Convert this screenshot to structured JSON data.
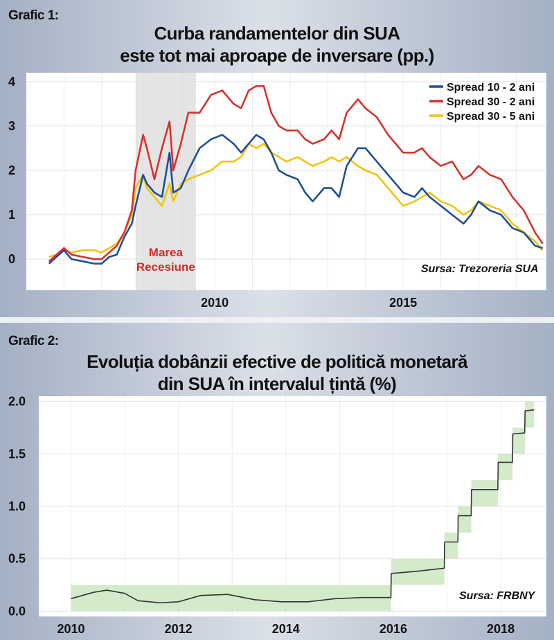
{
  "chart_data": [
    {
      "type": "line",
      "label": "Grafic 1:",
      "title_line1": "Curba randamentelor din SUA",
      "title_line2": "este tot mai aproape de inversare (pp.)",
      "source": "Sursa: Trezoreria SUA",
      "xlabel": "",
      "ylabel": "",
      "x_ticks": [
        "2010",
        "2015"
      ],
      "y_ticks": [
        "0",
        "1",
        "2",
        "3",
        "4"
      ],
      "xlim": [
        2005.0,
        2018.8
      ],
      "ylim": [
        -0.7,
        4.2
      ],
      "grid": true,
      "legend_position": "top-right",
      "annotation": {
        "line1": "Marea",
        "line2": "Recesiune",
        "range": [
          2007.9,
          2009.5
        ]
      },
      "series": [
        {
          "name": "Spread 10 - 2 ani",
          "color": "#1f4e96",
          "points": [
            [
              2005.6,
              -0.1
            ],
            [
              2005.8,
              0.05
            ],
            [
              2006.0,
              0.2
            ],
            [
              2006.2,
              0.0
            ],
            [
              2006.5,
              -0.05
            ],
            [
              2006.8,
              -0.1
            ],
            [
              2007.0,
              -0.1
            ],
            [
              2007.2,
              0.05
            ],
            [
              2007.4,
              0.1
            ],
            [
              2007.6,
              0.5
            ],
            [
              2007.8,
              0.8
            ],
            [
              2007.9,
              1.2
            ],
            [
              2008.1,
              1.9
            ],
            [
              2008.2,
              1.7
            ],
            [
              2008.4,
              1.5
            ],
            [
              2008.6,
              1.4
            ],
            [
              2008.8,
              2.4
            ],
            [
              2008.9,
              1.5
            ],
            [
              2009.1,
              1.6
            ],
            [
              2009.3,
              2.0
            ],
            [
              2009.6,
              2.5
            ],
            [
              2009.9,
              2.7
            ],
            [
              2010.2,
              2.8
            ],
            [
              2010.5,
              2.6
            ],
            [
              2010.7,
              2.4
            ],
            [
              2010.9,
              2.6
            ],
            [
              2011.1,
              2.8
            ],
            [
              2011.3,
              2.7
            ],
            [
              2011.5,
              2.4
            ],
            [
              2011.7,
              2.0
            ],
            [
              2011.9,
              1.9
            ],
            [
              2012.2,
              1.8
            ],
            [
              2012.4,
              1.5
            ],
            [
              2012.6,
              1.3
            ],
            [
              2012.9,
              1.6
            ],
            [
              2013.1,
              1.6
            ],
            [
              2013.3,
              1.4
            ],
            [
              2013.5,
              2.1
            ],
            [
              2013.8,
              2.5
            ],
            [
              2014.0,
              2.5
            ],
            [
              2014.3,
              2.2
            ],
            [
              2014.6,
              1.9
            ],
            [
              2014.8,
              1.7
            ],
            [
              2015.0,
              1.5
            ],
            [
              2015.3,
              1.4
            ],
            [
              2015.5,
              1.6
            ],
            [
              2015.7,
              1.4
            ],
            [
              2016.0,
              1.2
            ],
            [
              2016.3,
              1.0
            ],
            [
              2016.6,
              0.8
            ],
            [
              2016.8,
              1.0
            ],
            [
              2017.0,
              1.3
            ],
            [
              2017.3,
              1.1
            ],
            [
              2017.6,
              1.0
            ],
            [
              2017.9,
              0.7
            ],
            [
              2018.2,
              0.6
            ],
            [
              2018.5,
              0.3
            ],
            [
              2018.7,
              0.25
            ]
          ]
        },
        {
          "name": "Spread 30 - 2 ani",
          "color": "#d7322a",
          "points": [
            [
              2005.6,
              -0.05
            ],
            [
              2005.8,
              0.1
            ],
            [
              2006.0,
              0.25
            ],
            [
              2006.2,
              0.1
            ],
            [
              2006.5,
              0.05
            ],
            [
              2006.8,
              0.0
            ],
            [
              2007.0,
              0.0
            ],
            [
              2007.2,
              0.15
            ],
            [
              2007.4,
              0.3
            ],
            [
              2007.6,
              0.6
            ],
            [
              2007.8,
              1.1
            ],
            [
              2007.9,
              2.0
            ],
            [
              2008.1,
              2.8
            ],
            [
              2008.2,
              2.5
            ],
            [
              2008.4,
              1.8
            ],
            [
              2008.6,
              2.5
            ],
            [
              2008.8,
              3.1
            ],
            [
              2008.9,
              2.0
            ],
            [
              2009.1,
              2.6
            ],
            [
              2009.3,
              3.3
            ],
            [
              2009.6,
              3.3
            ],
            [
              2009.9,
              3.7
            ],
            [
              2010.2,
              3.8
            ],
            [
              2010.5,
              3.5
            ],
            [
              2010.7,
              3.4
            ],
            [
              2010.9,
              3.8
            ],
            [
              2011.1,
              3.9
            ],
            [
              2011.3,
              3.9
            ],
            [
              2011.5,
              3.3
            ],
            [
              2011.7,
              3.0
            ],
            [
              2011.9,
              2.9
            ],
            [
              2012.2,
              2.9
            ],
            [
              2012.4,
              2.7
            ],
            [
              2012.6,
              2.6
            ],
            [
              2012.9,
              2.7
            ],
            [
              2013.1,
              2.9
            ],
            [
              2013.3,
              2.7
            ],
            [
              2013.5,
              3.3
            ],
            [
              2013.8,
              3.6
            ],
            [
              2014.0,
              3.4
            ],
            [
              2014.3,
              3.2
            ],
            [
              2014.6,
              2.8
            ],
            [
              2014.8,
              2.6
            ],
            [
              2015.0,
              2.4
            ],
            [
              2015.3,
              2.4
            ],
            [
              2015.5,
              2.5
            ],
            [
              2015.7,
              2.3
            ],
            [
              2016.0,
              2.1
            ],
            [
              2016.3,
              2.2
            ],
            [
              2016.6,
              1.8
            ],
            [
              2016.8,
              1.9
            ],
            [
              2017.0,
              2.1
            ],
            [
              2017.3,
              1.9
            ],
            [
              2017.6,
              1.8
            ],
            [
              2017.9,
              1.4
            ],
            [
              2018.2,
              1.1
            ],
            [
              2018.5,
              0.6
            ],
            [
              2018.7,
              0.35
            ]
          ]
        },
        {
          "name": "Spread 30 - 5 ani",
          "color": "#f1c40f",
          "points": [
            [
              2005.6,
              0.05
            ],
            [
              2005.8,
              0.1
            ],
            [
              2006.0,
              0.2
            ],
            [
              2006.2,
              0.15
            ],
            [
              2006.5,
              0.2
            ],
            [
              2006.8,
              0.2
            ],
            [
              2007.0,
              0.15
            ],
            [
              2007.2,
              0.25
            ],
            [
              2007.4,
              0.35
            ],
            [
              2007.6,
              0.6
            ],
            [
              2007.8,
              1.0
            ],
            [
              2007.9,
              1.6
            ],
            [
              2008.1,
              1.9
            ],
            [
              2008.2,
              1.6
            ],
            [
              2008.4,
              1.4
            ],
            [
              2008.6,
              1.2
            ],
            [
              2008.8,
              1.7
            ],
            [
              2008.9,
              1.3
            ],
            [
              2009.1,
              1.7
            ],
            [
              2009.3,
              1.8
            ],
            [
              2009.6,
              1.9
            ],
            [
              2009.9,
              2.0
            ],
            [
              2010.2,
              2.2
            ],
            [
              2010.5,
              2.2
            ],
            [
              2010.7,
              2.3
            ],
            [
              2010.9,
              2.6
            ],
            [
              2011.1,
              2.5
            ],
            [
              2011.3,
              2.6
            ],
            [
              2011.5,
              2.4
            ],
            [
              2011.7,
              2.3
            ],
            [
              2011.9,
              2.2
            ],
            [
              2012.2,
              2.3
            ],
            [
              2012.4,
              2.2
            ],
            [
              2012.6,
              2.1
            ],
            [
              2012.9,
              2.2
            ],
            [
              2013.1,
              2.3
            ],
            [
              2013.3,
              2.2
            ],
            [
              2013.5,
              2.3
            ],
            [
              2013.8,
              2.1
            ],
            [
              2014.0,
              2.0
            ],
            [
              2014.3,
              1.9
            ],
            [
              2014.6,
              1.6
            ],
            [
              2014.8,
              1.4
            ],
            [
              2015.0,
              1.2
            ],
            [
              2015.3,
              1.3
            ],
            [
              2015.5,
              1.4
            ],
            [
              2015.7,
              1.5
            ],
            [
              2016.0,
              1.3
            ],
            [
              2016.3,
              1.2
            ],
            [
              2016.6,
              1.0
            ],
            [
              2016.8,
              1.1
            ],
            [
              2017.0,
              1.3
            ],
            [
              2017.3,
              1.2
            ],
            [
              2017.6,
              1.1
            ],
            [
              2017.9,
              0.8
            ],
            [
              2018.2,
              0.6
            ],
            [
              2018.5,
              0.4
            ],
            [
              2018.7,
              0.2
            ]
          ]
        }
      ]
    },
    {
      "type": "line",
      "label": "Grafic 2:",
      "title_line1": "Evoluția dobânzii efective de politică monetară",
      "title_line2": "din SUA în intervalul țintă (%)",
      "source": "Sursa:  FRBNY",
      "xlabel": "",
      "ylabel": "",
      "x_ticks": [
        "2010",
        "2012",
        "2014",
        "2016",
        "2018"
      ],
      "y_ticks": [
        "0.0",
        "0.5",
        "1.0",
        "1.5",
        "2.0"
      ],
      "xlim": [
        2009.4,
        2018.85
      ],
      "ylim": [
        -0.05,
        2.05
      ],
      "grid": true,
      "target_ranges": [
        {
          "start": "2010-01-01",
          "end": "2015-12-16",
          "low": 0.0,
          "high": 0.25
        },
        {
          "start": "2015-12-16",
          "end": "2016-12-14",
          "low": 0.25,
          "high": 0.5
        },
        {
          "start": "2016-12-14",
          "end": "2017-03-15",
          "low": 0.5,
          "high": 0.75
        },
        {
          "start": "2017-03-15",
          "end": "2017-06-14",
          "low": 0.75,
          "high": 1.0
        },
        {
          "start": "2017-06-14",
          "end": "2017-12-13",
          "low": 1.0,
          "high": 1.25
        },
        {
          "start": "2017-12-13",
          "end": "2018-03-21",
          "low": 1.25,
          "high": 1.5
        },
        {
          "start": "2018-03-21",
          "end": "2018-06-13",
          "low": 1.5,
          "high": 1.75
        },
        {
          "start": "2018-06-13",
          "end": "2018-08-15",
          "low": 1.75,
          "high": 2.0
        }
      ],
      "series": [
        {
          "name": "",
          "color": "#333333",
          "points": [
            [
              "2010-01-01",
              0.12
            ],
            [
              "2010-06-01",
              0.18
            ],
            [
              "2010-09-01",
              0.2
            ],
            [
              "2011-01-01",
              0.17
            ],
            [
              "2011-04-01",
              0.1
            ],
            [
              "2011-09-01",
              0.08
            ],
            [
              "2012-01-01",
              0.09
            ],
            [
              "2012-06-01",
              0.15
            ],
            [
              "2012-12-01",
              0.16
            ],
            [
              "2013-06-01",
              0.11
            ],
            [
              "2013-12-01",
              0.09
            ],
            [
              "2014-06-01",
              0.09
            ],
            [
              "2014-12-01",
              0.12
            ],
            [
              "2015-06-01",
              0.13
            ],
            [
              "2015-12-15",
              0.13
            ],
            [
              "2015-12-17",
              0.36
            ],
            [
              "2016-06-01",
              0.38
            ],
            [
              "2016-12-13",
              0.41
            ],
            [
              "2016-12-15",
              0.66
            ],
            [
              "2017-03-14",
              0.66
            ],
            [
              "2017-03-16",
              0.91
            ],
            [
              "2017-06-13",
              0.91
            ],
            [
              "2017-06-15",
              1.16
            ],
            [
              "2017-12-12",
              1.16
            ],
            [
              "2017-12-14",
              1.42
            ],
            [
              "2018-03-20",
              1.42
            ],
            [
              "2018-03-22",
              1.69
            ],
            [
              "2018-06-12",
              1.7
            ],
            [
              "2018-06-14",
              1.91
            ],
            [
              "2018-08-15",
              1.92
            ]
          ]
        }
      ]
    }
  ]
}
